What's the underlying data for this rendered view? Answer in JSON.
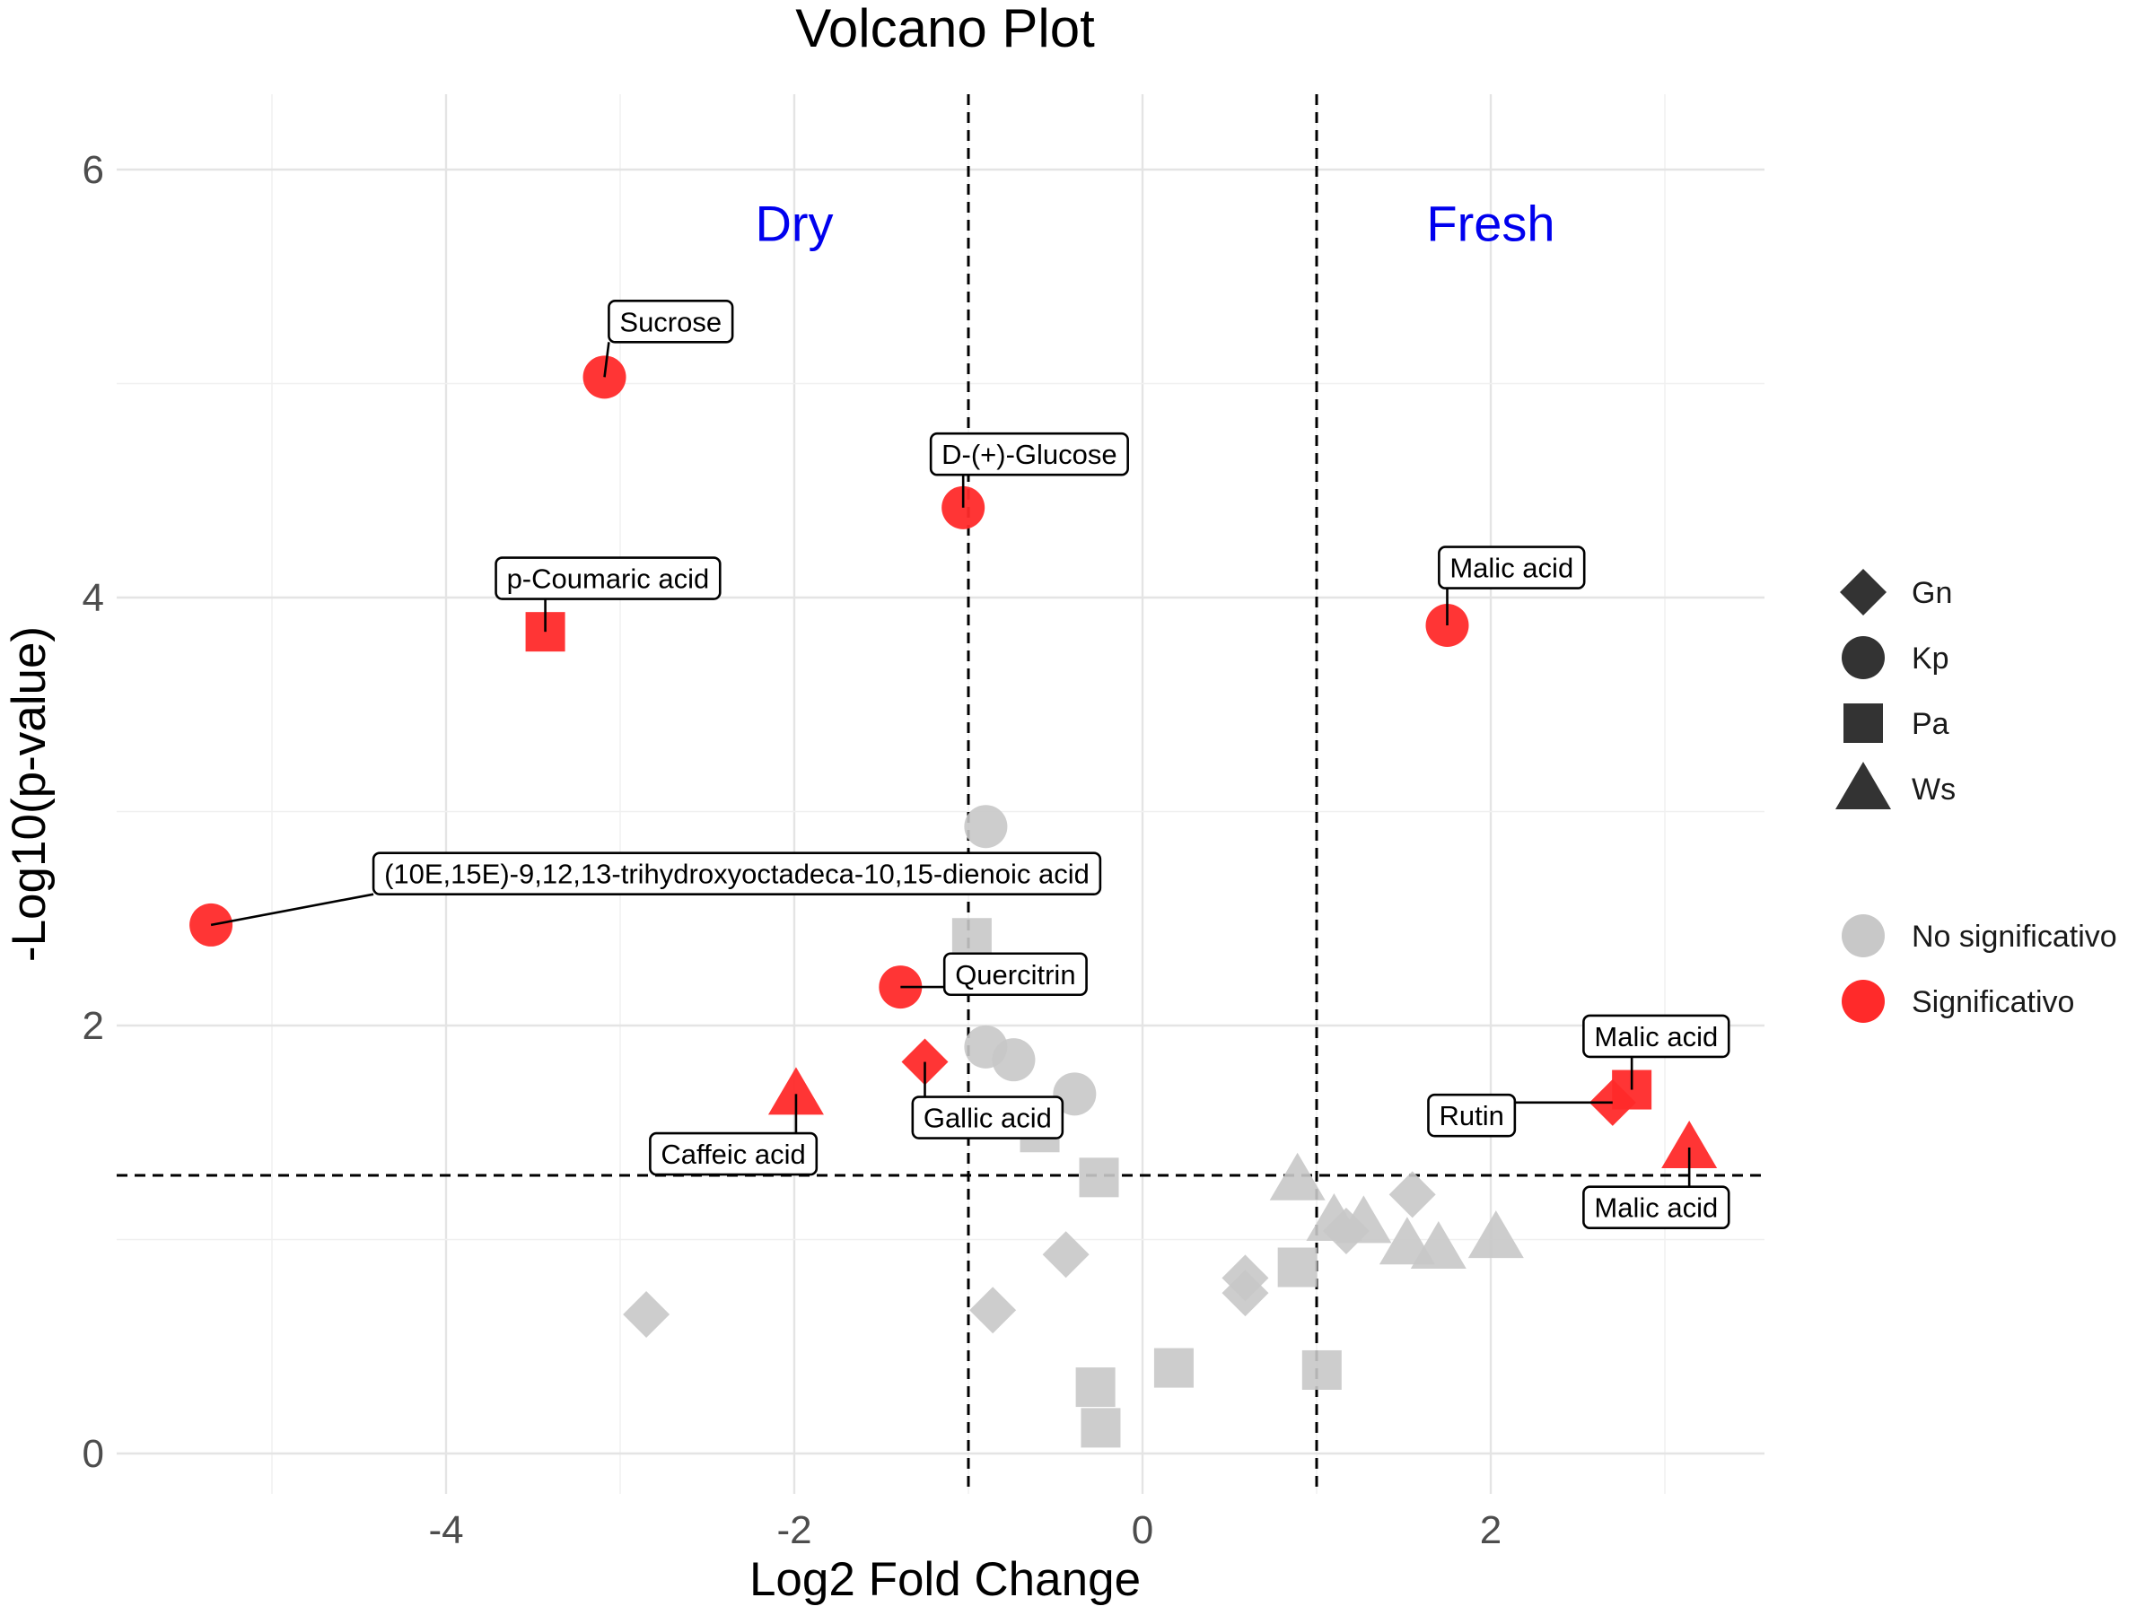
{
  "chart_data": {
    "type": "scatter",
    "title": "Volcano Plot",
    "xlabel": "Log2 Fold Change",
    "ylabel": "-Log10(p-value)",
    "xlim": [
      -5.2,
      3.6
    ],
    "ylim": [
      -0.2,
      6.35
    ],
    "x_ticks": [
      -4,
      -2,
      0,
      2
    ],
    "y_ticks": [
      0,
      2,
      4,
      6
    ],
    "thresholds": {
      "x": [
        -1,
        1
      ],
      "y": 1.3
    },
    "region_labels": [
      {
        "text": "Dry",
        "x": -2,
        "y": 5.75
      },
      {
        "text": "Fresh",
        "x": 2,
        "y": 5.75
      }
    ],
    "colors": {
      "No significativo": "#c8c8c8",
      "Significativo": "#ff2a2a"
    },
    "legend": {
      "placement": "right",
      "shapes": [
        {
          "label": "Gn",
          "shape": "diamond"
        },
        {
          "label": "Kp",
          "shape": "circle"
        },
        {
          "label": "Pa",
          "shape": "square"
        },
        {
          "label": "Ws",
          "shape": "triangle"
        }
      ],
      "groups": [
        "No significativo",
        "Significativo"
      ]
    },
    "points": [
      {
        "x": -5.35,
        "y": 2.47,
        "shape": "circle",
        "group": "Significativo",
        "label": "(10E,15E)-9,12,13-trihydroxyoctadeca-10,15-dienoic acid",
        "lx": -2.33,
        "ly": 2.71
      },
      {
        "x": -3.09,
        "y": 5.03,
        "shape": "circle",
        "group": "Significativo",
        "label": "Sucrose",
        "lx": -2.71,
        "ly": 5.29
      },
      {
        "x": -3.43,
        "y": 3.84,
        "shape": "square",
        "group": "Significativo",
        "label": "p-Coumaric acid",
        "lx": -3.07,
        "ly": 4.09
      },
      {
        "x": -1.03,
        "y": 4.42,
        "shape": "circle",
        "group": "Significativo",
        "label": "D-(+)-Glucose",
        "lx": -0.65,
        "ly": 4.67
      },
      {
        "x": -1.39,
        "y": 2.18,
        "shape": "circle",
        "group": "Significativo",
        "label": "Quercitrin",
        "lx": -0.73,
        "ly": 2.24
      },
      {
        "x": -1.25,
        "y": 1.83,
        "shape": "diamond",
        "group": "Significativo",
        "label": "Gallic acid",
        "lx": -0.89,
        "ly": 1.57
      },
      {
        "x": -1.99,
        "y": 1.68,
        "shape": "triangle",
        "group": "Significativo",
        "label": "Caffeic acid",
        "lx": -2.35,
        "ly": 1.4
      },
      {
        "x": 1.75,
        "y": 3.87,
        "shape": "circle",
        "group": "Significativo",
        "label": "Malic acid",
        "lx": 2.12,
        "ly": 4.14
      },
      {
        "x": 2.81,
        "y": 1.7,
        "shape": "square",
        "group": "Significativo",
        "label": "Malic acid",
        "lx": 2.95,
        "ly": 1.95
      },
      {
        "x": 2.7,
        "y": 1.64,
        "shape": "diamond",
        "group": "Significativo",
        "label": "Rutin",
        "lx": 1.89,
        "ly": 1.58
      },
      {
        "x": 3.14,
        "y": 1.43,
        "shape": "triangle",
        "group": "Significativo",
        "label": "Malic acid",
        "lx": 2.95,
        "ly": 1.15
      },
      {
        "x": -0.9,
        "y": 2.93,
        "shape": "circle",
        "group": "No significativo"
      },
      {
        "x": -0.98,
        "y": 2.41,
        "shape": "square",
        "group": "No significativo"
      },
      {
        "x": -0.9,
        "y": 1.9,
        "shape": "circle",
        "group": "No significativo"
      },
      {
        "x": -0.74,
        "y": 1.84,
        "shape": "circle",
        "group": "No significativo"
      },
      {
        "x": -0.39,
        "y": 1.68,
        "shape": "circle",
        "group": "No significativo"
      },
      {
        "x": -0.59,
        "y": 1.5,
        "shape": "square",
        "group": "No significativo"
      },
      {
        "x": -0.25,
        "y": 1.29,
        "shape": "square",
        "group": "No significativo"
      },
      {
        "x": -2.85,
        "y": 0.65,
        "shape": "diamond",
        "group": "No significativo"
      },
      {
        "x": -0.86,
        "y": 0.67,
        "shape": "diamond",
        "group": "No significativo"
      },
      {
        "x": -0.44,
        "y": 0.93,
        "shape": "diamond",
        "group": "No significativo"
      },
      {
        "x": -0.27,
        "y": 0.31,
        "shape": "square",
        "group": "No significativo"
      },
      {
        "x": -0.24,
        "y": 0.12,
        "shape": "square",
        "group": "No significativo"
      },
      {
        "x": 0.18,
        "y": 0.4,
        "shape": "square",
        "group": "No significativo"
      },
      {
        "x": 0.59,
        "y": 0.75,
        "shape": "diamond",
        "group": "No significativo"
      },
      {
        "x": 0.59,
        "y": 0.82,
        "shape": "diamond",
        "group": "No significativo"
      },
      {
        "x": 0.89,
        "y": 0.87,
        "shape": "square",
        "group": "No significativo"
      },
      {
        "x": 1.03,
        "y": 0.39,
        "shape": "square",
        "group": "No significativo"
      },
      {
        "x": 0.89,
        "y": 1.28,
        "shape": "triangle",
        "group": "No significativo"
      },
      {
        "x": 1.1,
        "y": 1.09,
        "shape": "triangle",
        "group": "No significativo"
      },
      {
        "x": 1.17,
        "y": 1.04,
        "shape": "diamond",
        "group": "No significativo"
      },
      {
        "x": 1.27,
        "y": 1.08,
        "shape": "triangle",
        "group": "No significativo"
      },
      {
        "x": 1.55,
        "y": 1.21,
        "shape": "diamond",
        "group": "No significativo"
      },
      {
        "x": 1.52,
        "y": 0.98,
        "shape": "triangle",
        "group": "No significativo"
      },
      {
        "x": 1.7,
        "y": 0.96,
        "shape": "triangle",
        "group": "No significativo"
      },
      {
        "x": 2.03,
        "y": 1.01,
        "shape": "triangle",
        "group": "No significativo"
      }
    ]
  }
}
